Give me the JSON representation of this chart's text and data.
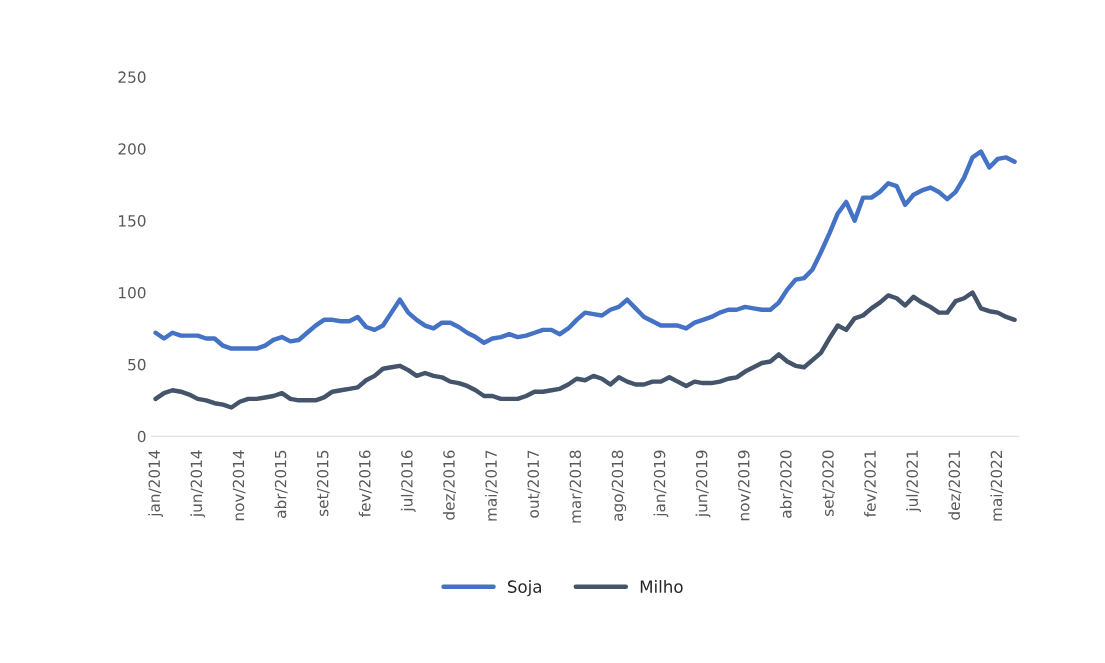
{
  "chart_data": {
    "type": "line",
    "categories": [
      "jan/2014",
      null,
      null,
      null,
      null,
      "jun/2014",
      null,
      null,
      null,
      null,
      "nov/2014",
      null,
      null,
      null,
      null,
      "abr/2015",
      null,
      null,
      null,
      null,
      "set/2015",
      null,
      null,
      null,
      null,
      "fev/2016",
      null,
      null,
      null,
      null,
      "jul/2016",
      null,
      null,
      null,
      null,
      "dez/2016",
      null,
      null,
      null,
      null,
      "mai/2017",
      null,
      null,
      null,
      null,
      "out/2017",
      null,
      null,
      null,
      null,
      "mar/2018",
      null,
      null,
      null,
      null,
      "ago/2018",
      null,
      null,
      null,
      null,
      "jan/2019",
      null,
      null,
      null,
      null,
      "jun/2019",
      null,
      null,
      null,
      null,
      "nov/2019",
      null,
      null,
      null,
      null,
      "abr/2020",
      null,
      null,
      null,
      null,
      "set/2020",
      null,
      null,
      null,
      null,
      "fev/2021",
      null,
      null,
      null,
      null,
      "jul/2021",
      null,
      null,
      null,
      null,
      "dez/2021",
      null,
      null,
      null,
      null,
      "mai/2022",
      null,
      null
    ],
    "series": [
      {
        "name": "Soja",
        "color": "#4472c4",
        "values": [
          72,
          68,
          72,
          70,
          70,
          70,
          68,
          68,
          63,
          61,
          61,
          61,
          61,
          63,
          67,
          69,
          66,
          67,
          72,
          77,
          81,
          81,
          80,
          80,
          83,
          76,
          74,
          77,
          86,
          95,
          86,
          81,
          77,
          75,
          79,
          79,
          76,
          72,
          69,
          65,
          68,
          69,
          71,
          69,
          70,
          72,
          74,
          74,
          71,
          75,
          81,
          86,
          85,
          84,
          88,
          90,
          95,
          89,
          83,
          80,
          77,
          77,
          77,
          75,
          79,
          81,
          83,
          86,
          88,
          88,
          90,
          89,
          88,
          88,
          93,
          102,
          109,
          110,
          116,
          128,
          141,
          155,
          163,
          150,
          166,
          166,
          170,
          176,
          174,
          161,
          168,
          171,
          173,
          170,
          165,
          170,
          180,
          194,
          198,
          187,
          193,
          194,
          191
        ]
      },
      {
        "name": "Milho",
        "color": "#44546a",
        "values": [
          26,
          30,
          32,
          31,
          29,
          26,
          25,
          23,
          22,
          20,
          24,
          26,
          26,
          27,
          28,
          30,
          26,
          25,
          25,
          25,
          27,
          31,
          32,
          33,
          34,
          39,
          42,
          47,
          48,
          49,
          46,
          42,
          44,
          42,
          41,
          38,
          37,
          35,
          32,
          28,
          28,
          26,
          26,
          26,
          28,
          31,
          31,
          32,
          33,
          36,
          40,
          39,
          42,
          40,
          36,
          41,
          38,
          36,
          36,
          38,
          38,
          41,
          38,
          35,
          38,
          37,
          37,
          38,
          40,
          41,
          45,
          48,
          51,
          52,
          57,
          52,
          49,
          48,
          53,
          58,
          68,
          77,
          74,
          82,
          84,
          89,
          93,
          98,
          96,
          91,
          97,
          93,
          90,
          86,
          86,
          94,
          96,
          100,
          89,
          87,
          86,
          83,
          81
        ]
      }
    ],
    "ylim": [
      0,
      250
    ],
    "yticks": [
      0,
      50,
      100,
      150,
      200,
      250
    ],
    "grid": false,
    "legend": "bottom",
    "marker": "none",
    "line_style": "solid"
  }
}
